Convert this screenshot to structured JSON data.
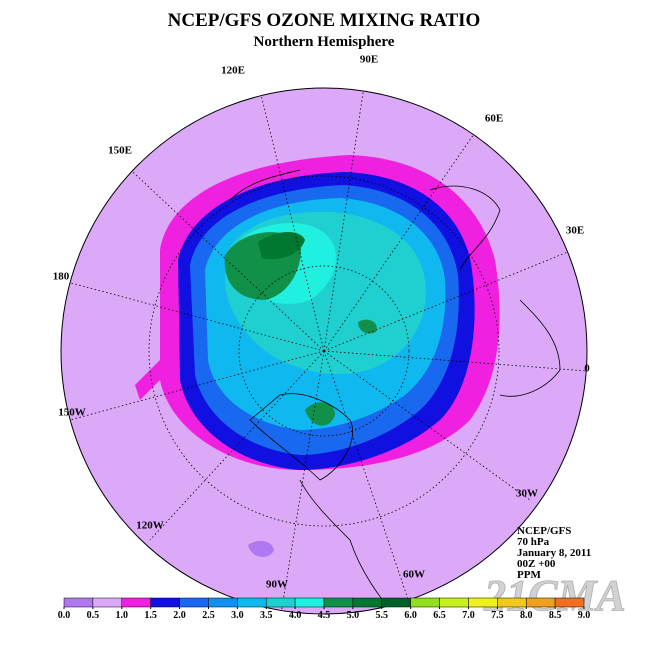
{
  "title": "NCEP/GFS OZONE MIXING RATIO",
  "subtitle": "Northern Hemisphere",
  "longitude_labels": [
    "90E",
    "60E",
    "30E",
    "0",
    "30W",
    "60W",
    "90W",
    "120W",
    "150W",
    "180",
    "150E",
    "120E"
  ],
  "info": [
    "NCEP/GFS",
    "70 hPa",
    "January 8, 2011",
    "00Z +00",
    "PPM"
  ],
  "watermark": "21CMA",
  "colorbar": {
    "ticks": [
      {
        "value": 0,
        "label": "0.0"
      },
      {
        "value": 0.5,
        "label": "0.5"
      },
      {
        "value": 1,
        "label": "1.0"
      },
      {
        "value": 1.5,
        "label": "1.5"
      },
      {
        "value": 2,
        "label": "2.0"
      },
      {
        "value": 2.5,
        "label": "2.5"
      },
      {
        "value": 3,
        "label": "3.0"
      },
      {
        "value": 3.5,
        "label": "3.5"
      },
      {
        "value": 4,
        "label": "4.0"
      },
      {
        "value": 4.5,
        "label": "4.5"
      },
      {
        "value": 5,
        "label": "5.0"
      },
      {
        "value": 5.5,
        "label": "5.5"
      },
      {
        "value": 6,
        "label": "6.0"
      },
      {
        "value": 6.5,
        "label": "6.5"
      },
      {
        "value": 7,
        "label": "7.0"
      },
      {
        "value": 7.5,
        "label": "7.5"
      },
      {
        "value": 8,
        "label": "8.0"
      },
      {
        "value": 8.5,
        "label": "8.5"
      },
      {
        "value": 9,
        "label": "9.0"
      }
    ],
    "colors": [
      "#b078f0",
      "#dca8f8",
      "#f020e0",
      "#1010e0",
      "#1868f0",
      "#1090f0",
      "#10b8f0",
      "#20d0d0",
      "#20f0e0",
      "#109048",
      "#007830",
      "#006028",
      "#90e020",
      "#c8f020",
      "#f0f020",
      "#f0c820",
      "#f0a020",
      "#f07020",
      "#f04040",
      "#a07060"
    ]
  }
}
